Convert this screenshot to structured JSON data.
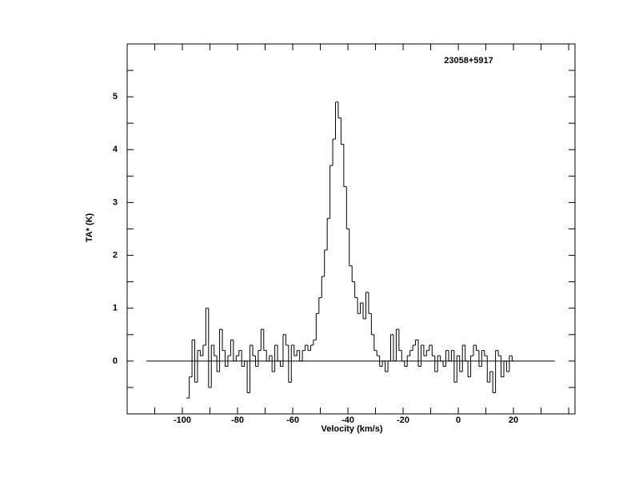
{
  "chart_data": {
    "type": "step",
    "title": "23058+5917",
    "x_label": "Velocity (km/s)",
    "y_label": "TA* (K)",
    "xlim": [
      -120,
      42.3
    ],
    "ylim": [
      -1,
      6
    ],
    "xticks": [
      -100,
      -80,
      -60,
      -40,
      -20,
      0,
      20
    ],
    "yticks": [
      0,
      1,
      2,
      3,
      4,
      5
    ],
    "baseline": {
      "x": [
        -113,
        35
      ],
      "y": 0
    },
    "series": [
      {
        "color": "#000000",
        "x": [
          -98,
          -97,
          -96,
          -95,
          -94,
          -93,
          -92,
          -91,
          -90,
          -89,
          -88,
          -87,
          -86,
          -85,
          -84,
          -83,
          -82,
          -81,
          -80,
          -79,
          -78,
          -77,
          -76,
          -75,
          -74,
          -73,
          -72,
          -71,
          -70,
          -69,
          -68,
          -67,
          -66,
          -65,
          -64,
          -63,
          -62,
          -61,
          -60,
          -59,
          -58,
          -57,
          -56,
          -55,
          -54,
          -53,
          -52,
          -51,
          -50,
          -49,
          -48,
          -47,
          -46,
          -45,
          -44,
          -43,
          -42,
          -41,
          -40,
          -39,
          -38,
          -37,
          -36,
          -35,
          -34,
          -33,
          -32,
          -31,
          -30,
          -29,
          -28,
          -27,
          -26,
          -25,
          -24,
          -23,
          -22,
          -21,
          -20,
          -19,
          -18,
          -17,
          -16,
          -15,
          -14,
          -13,
          -12,
          -11,
          -10,
          -9,
          -8,
          -7,
          -6,
          -5,
          -4,
          -3,
          -2,
          -1,
          0,
          1,
          2,
          3,
          4,
          5,
          6,
          7,
          8,
          9,
          10,
          11,
          12,
          13,
          14,
          15,
          16,
          17,
          18,
          19,
          20
        ],
        "values": [
          -0.7,
          -0.3,
          0.4,
          -0.4,
          0.2,
          0.1,
          0.3,
          1.0,
          -0.5,
          0.3,
          0.1,
          -0.2,
          0.6,
          0.2,
          -0.1,
          0.1,
          0.4,
          0.0,
          0.1,
          0.2,
          -0.1,
          0.0,
          -0.6,
          0.3,
          0.1,
          -0.1,
          0.2,
          0.6,
          0.2,
          0.0,
          0.1,
          -0.2,
          0.3,
          0.0,
          -0.1,
          0.5,
          0.3,
          -0.4,
          0.3,
          0.1,
          0.2,
          0.0,
          0.2,
          0.3,
          0.2,
          0.3,
          0.4,
          0.9,
          1.2,
          1.6,
          2.1,
          2.7,
          3.7,
          4.2,
          4.9,
          4.6,
          4.1,
          3.3,
          2.5,
          1.8,
          1.5,
          1.2,
          0.9,
          1.1,
          0.8,
          1.3,
          0.9,
          0.5,
          0.2,
          0.1,
          -0.1,
          0.0,
          -0.2,
          0.0,
          0.5,
          0.0,
          0.6,
          0.2,
          0.0,
          -0.1,
          0.1,
          0.2,
          0.3,
          0.4,
          -0.1,
          0.3,
          0.1,
          0.2,
          0.3,
          0.1,
          -0.2,
          0.1,
          0.0,
          -0.1,
          0.2,
          0.0,
          0.2,
          -0.4,
          0.1,
          -0.2,
          0.3,
          0.0,
          -0.3,
          0.1,
          0.3,
          0.2,
          -0.1,
          0.2,
          0.1,
          -0.4,
          -0.2,
          -0.6,
          0.2,
          0.1,
          -0.3,
          0.0,
          -0.2,
          0.1,
          0.0
        ]
      }
    ]
  }
}
